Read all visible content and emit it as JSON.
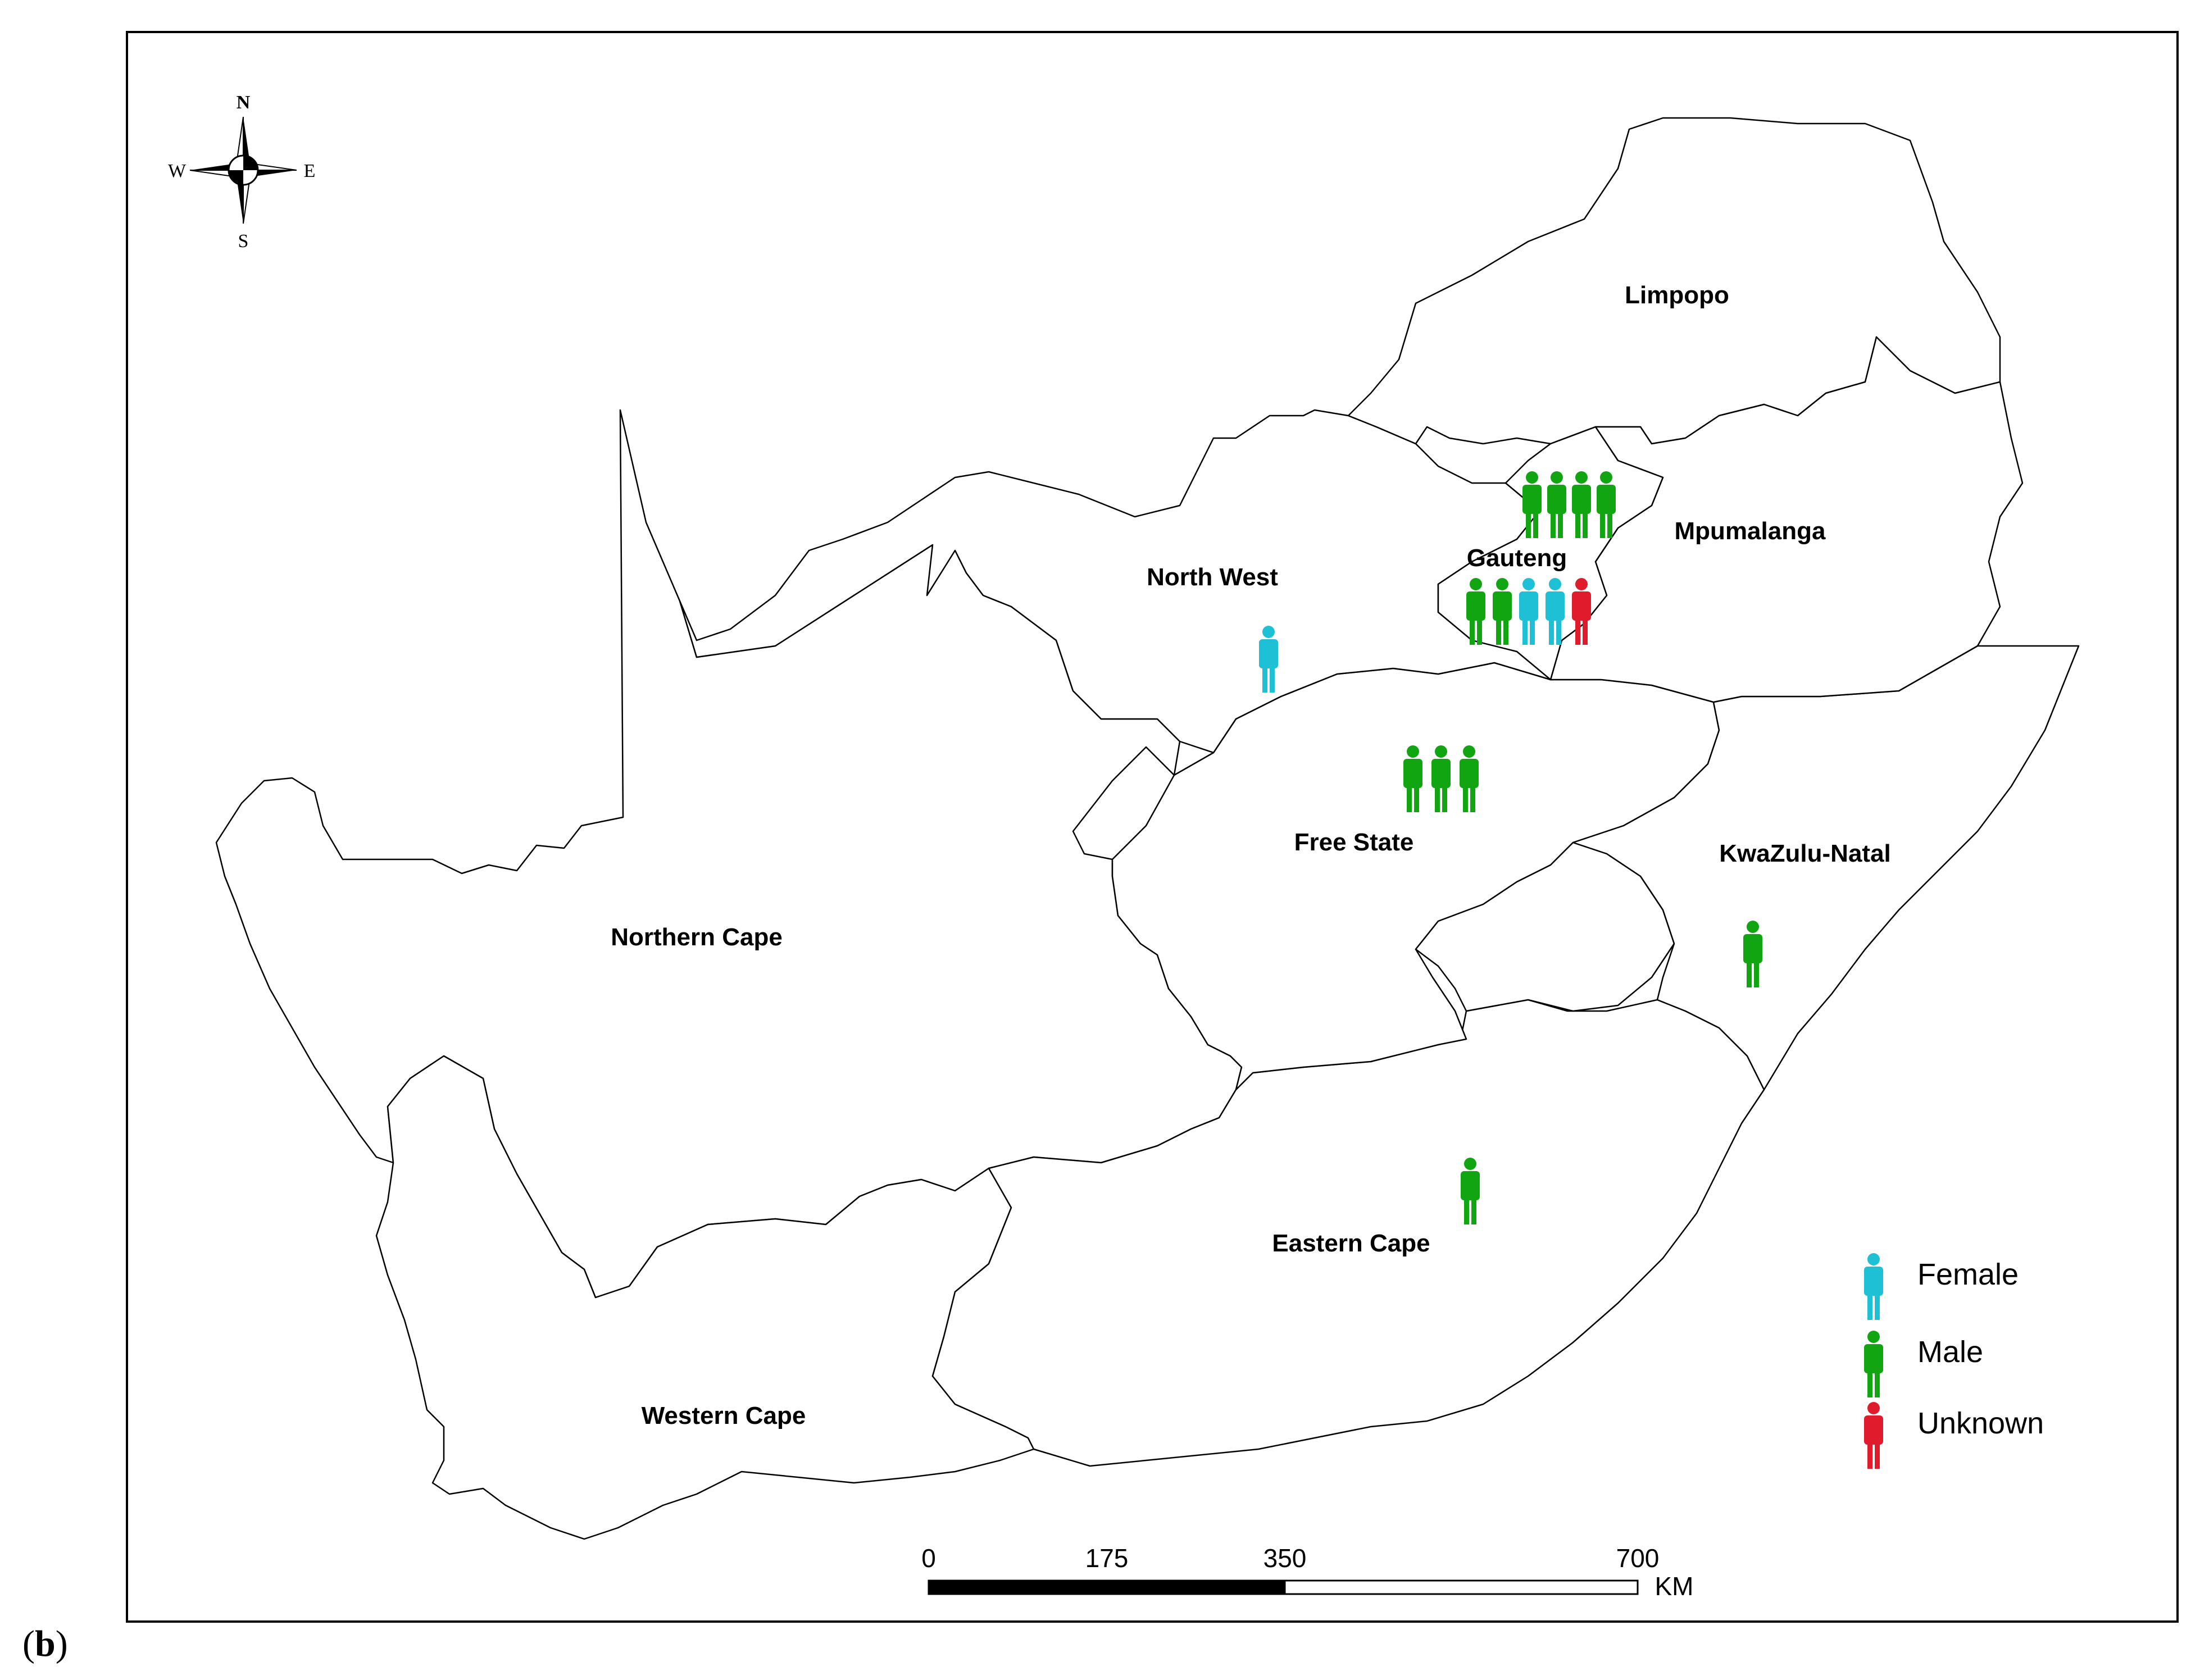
{
  "panel_label": "(b)",
  "panel_label_bold": "b",
  "compass": {
    "north": "N",
    "south": "S",
    "east": "E",
    "west": "W"
  },
  "regions": {
    "limpopo": "Limpopo",
    "mpumalanga": "Mpumalanga",
    "gauteng": "Gauteng",
    "north_west": "North West",
    "free_state": "Free State",
    "kwazulu_natal": "KwaZulu-Natal",
    "northern_cape": "Northern Cape",
    "eastern_cape": "Eastern Cape",
    "western_cape": "Western Cape"
  },
  "legend": {
    "female": {
      "label": "Female",
      "color": "#1ec0d6"
    },
    "male": {
      "label": "Male",
      "color": "#12a512"
    },
    "unknown": {
      "label": "Unknown",
      "color": "#e01b2c"
    }
  },
  "case_markers": [
    {
      "region": "Gauteng (north)",
      "sex": [
        "male",
        "male",
        "male",
        "male"
      ]
    },
    {
      "region": "Gauteng (south)",
      "sex": [
        "male",
        "male",
        "female",
        "female",
        "unknown"
      ]
    },
    {
      "region": "North West",
      "sex": [
        "female"
      ]
    },
    {
      "region": "Free State",
      "sex": [
        "male",
        "male",
        "male"
      ]
    },
    {
      "region": "KwaZulu-Natal",
      "sex": [
        "male"
      ]
    },
    {
      "region": "Eastern Cape",
      "sex": [
        "male"
      ]
    }
  ],
  "scale_bar": {
    "ticks": [
      "0",
      "175",
      "350",
      "700"
    ],
    "unit": "KM"
  }
}
